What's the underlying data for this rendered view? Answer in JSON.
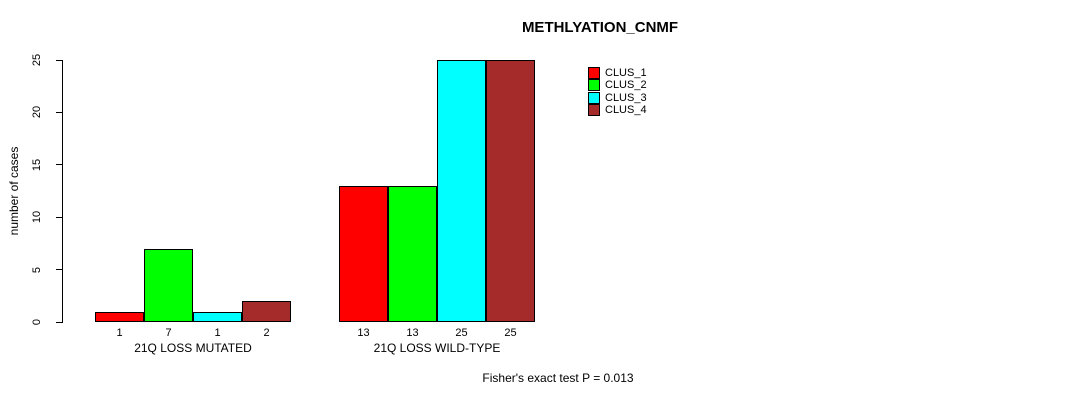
{
  "chart_data": {
    "type": "bar",
    "title": "METHLYATION_CNMF",
    "ylabel": "number of cases",
    "xlabel": "",
    "ylim": [
      0,
      25
    ],
    "yticks": [
      0,
      5,
      10,
      15,
      20,
      25
    ],
    "grid": false,
    "legend_position": "top-right",
    "categories": [
      "21Q LOSS MUTATED",
      "21Q LOSS WILD-TYPE"
    ],
    "series": [
      {
        "name": "CLUS_1",
        "color": "#ff0000",
        "values": [
          1,
          13
        ]
      },
      {
        "name": "CLUS_2",
        "color": "#00ff00",
        "values": [
          7,
          13
        ]
      },
      {
        "name": "CLUS_3",
        "color": "#00ffff",
        "values": [
          1,
          25
        ]
      },
      {
        "name": "CLUS_4",
        "color": "#a52a2a",
        "values": [
          2,
          25
        ]
      }
    ],
    "bar_value_labels": [
      [
        1,
        7,
        1,
        2
      ],
      [
        13,
        13,
        25,
        25
      ]
    ],
    "annotation": "Fisher's exact test P = 0.013",
    "axis_color": "#000000",
    "text_color": "#000000",
    "background_color": "#ffffff"
  }
}
